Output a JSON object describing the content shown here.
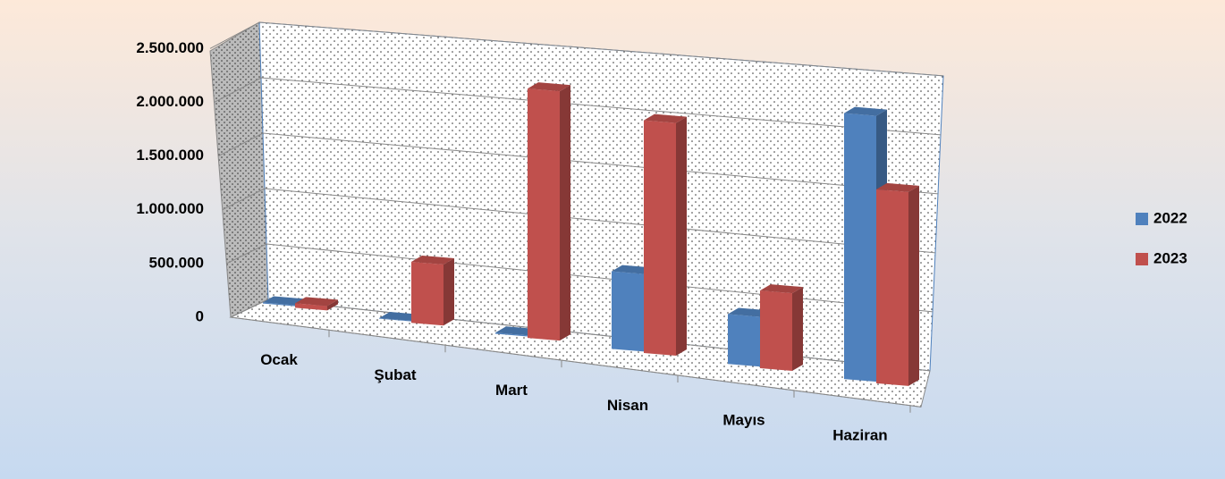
{
  "chart_data": {
    "type": "bar3d",
    "categories": [
      "Ocak",
      "Şubat",
      "Mart",
      "Nisan",
      "Mayıs",
      "Haziran"
    ],
    "series": [
      {
        "name": "2022",
        "color": "#4f81bd",
        "values": [
          10000,
          5000,
          10000,
          700000,
          450000,
          2400000
        ]
      },
      {
        "name": "2023",
        "color": "#c0504d",
        "values": [
          40000,
          550000,
          2250000,
          2100000,
          700000,
          1750000
        ]
      }
    ],
    "ylim": [
      0,
      2500000
    ],
    "yticks": [
      {
        "value": 0,
        "label": "0"
      },
      {
        "value": 500000,
        "label": "500.000"
      },
      {
        "value": 1000000,
        "label": "1.000.000"
      },
      {
        "value": 1500000,
        "label": "1.500.000"
      },
      {
        "value": 2000000,
        "label": "2.000.000"
      },
      {
        "value": 2500000,
        "label": "2.500.000"
      }
    ],
    "grid": true,
    "legend": "right"
  }
}
